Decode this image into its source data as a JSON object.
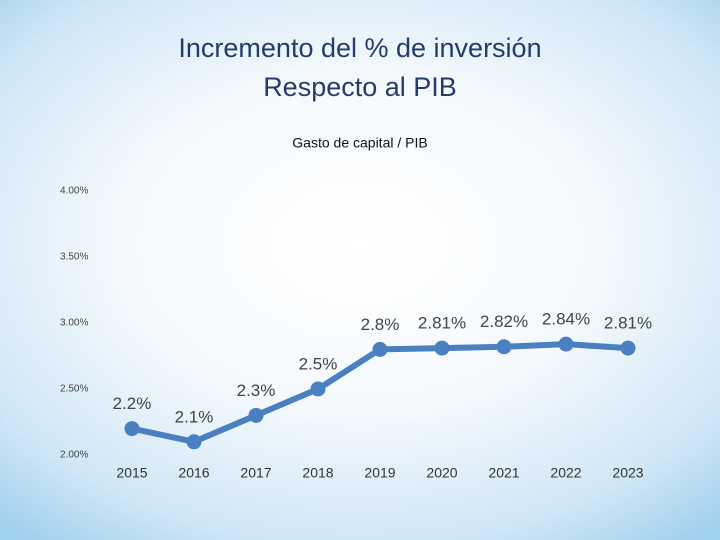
{
  "chart_data": {
    "type": "line",
    "title": [
      "Incremento del % de inversión",
      "Respecto al PIB"
    ],
    "subtitle": "Gasto de capital / PIB",
    "categories": [
      "2015",
      "2016",
      "2017",
      "2018",
      "2019",
      "2020",
      "2021",
      "2022",
      "2023"
    ],
    "values": [
      2.2,
      2.1,
      2.3,
      2.5,
      2.8,
      2.81,
      2.82,
      2.84,
      2.81
    ],
    "value_labels": [
      "2.2%",
      "2.1%",
      "2.3%",
      "2.5%",
      "2.8%",
      "2.81%",
      "2.82%",
      "2.84%",
      "2.81%"
    ],
    "color": "#4a7fc1",
    "ylim": [
      2,
      4
    ],
    "yticks": [
      {
        "value": 2,
        "label": "2.00%"
      },
      {
        "value": 2.5,
        "label": "2.50%"
      },
      {
        "value": 3,
        "label": "3.00%"
      },
      {
        "value": 3.5,
        "label": "3.50%"
      },
      {
        "value": 4,
        "label": "4.00%"
      }
    ],
    "grid": false
  }
}
